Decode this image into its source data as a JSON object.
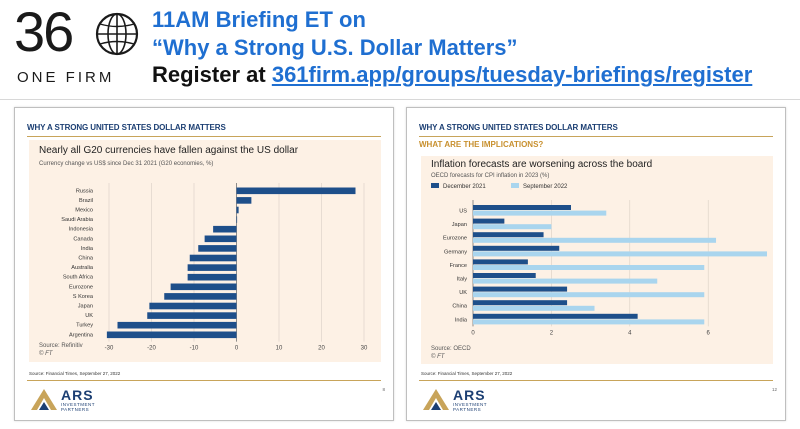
{
  "banner": {
    "logo_number": "36",
    "logo_subtitle": "ONE FIRM",
    "line1": "11AM Briefing ET on",
    "line2": "“Why a Strong U.S. Dollar Matters”",
    "register_prefix": "Register at ",
    "register_link": "361firm.app/groups/tuesday-briefings/register",
    "colors": {
      "blue": "#1f6fd1",
      "dark": "#111111"
    },
    "logo_icon": "globe-icon"
  },
  "slide_left": {
    "heading": "WHY A STRONG UNITED STATES DOLLAR MATTERS",
    "chart_title": "Nearly all G20 currencies have fallen against the US dollar",
    "chart_subtitle": "Currency change vs US$ since Dec 31 2021 (G20 economies, %)",
    "source": "Source: Refinitiv",
    "ft_mark": "© FT",
    "footer_source": "Source: Financial Times, September 27, 2022",
    "brand": "ARS",
    "brand_sub": "INVESTMENT PARTNERS",
    "page_number": "8"
  },
  "slide_right": {
    "heading": "WHY A STRONG UNITED STATES DOLLAR MATTERS",
    "subheading": "WHAT ARE THE IMPLICATIONS?",
    "chart_title": "Inflation forecasts are worsening across the board",
    "chart_subtitle": "OECD forecasts for CPI inflation in 2023 (%)",
    "source": "Source: OECD",
    "ft_mark": "© FT",
    "footer_source": "Source: Financial Times, September 27, 2022",
    "brand": "ARS",
    "brand_sub": "INVESTMENT PARTNERS",
    "page_number": "12"
  },
  "chart_data": [
    {
      "type": "bar",
      "orientation": "horizontal",
      "title": "Nearly all G20 currencies have fallen against the US dollar",
      "subtitle": "Currency change vs US$ since Dec 31 2021 (G20 economies, %)",
      "categories": [
        "Russia",
        "Brazil",
        "Mexico",
        "Saudi Arabia",
        "Indonesia",
        "Canada",
        "India",
        "China",
        "Australia",
        "South Africa",
        "Eurozone",
        "S Korea",
        "Japan",
        "UK",
        "Turkey",
        "Argentina"
      ],
      "values": [
        28,
        3.5,
        0.5,
        0,
        -5.5,
        -7.5,
        -9,
        -11,
        -11.5,
        -11.5,
        -15.5,
        -17,
        -20.5,
        -21,
        -28,
        -30.5
      ],
      "xlim": [
        -30,
        30
      ],
      "xticks": [
        "-30",
        "-20",
        "-10",
        "0",
        "10",
        "20",
        "30"
      ],
      "color": "#1e4f8a",
      "grid": true
    },
    {
      "type": "bar",
      "orientation": "horizontal",
      "title": "Inflation forecasts are worsening across the board",
      "subtitle": "OECD forecasts for CPI inflation in 2023 (%)",
      "categories": [
        "US",
        "Japan",
        "Eurozone",
        "Germany",
        "France",
        "Italy",
        "UK",
        "China",
        "India"
      ],
      "series": [
        {
          "name": "December 2021",
          "values": [
            2.5,
            0.8,
            1.8,
            2.2,
            1.4,
            1.6,
            2.4,
            2.4,
            4.2
          ],
          "color": "#1e4f8a"
        },
        {
          "name": "September 2022",
          "values": [
            3.4,
            2.0,
            6.2,
            7.5,
            5.9,
            4.7,
            5.9,
            3.1,
            5.9
          ],
          "color": "#a9d5ee"
        }
      ],
      "xlim": [
        0,
        7.5
      ],
      "xticks": [
        "0",
        "2",
        "4",
        "6"
      ],
      "legend": "top",
      "grid": true
    }
  ]
}
